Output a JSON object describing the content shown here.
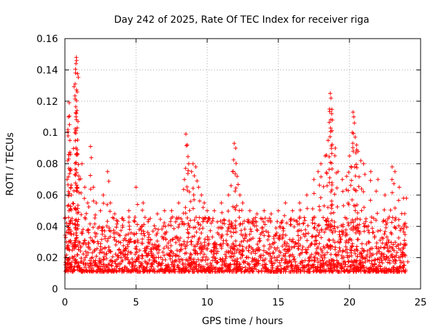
{
  "chart_data": {
    "type": "scatter",
    "title": "Day 242 of 2025, Rate Of TEC Index for receiver riga",
    "xlabel": "GPS time / hours",
    "ylabel": "ROTI / TECUs",
    "xlim": [
      0,
      25
    ],
    "ylim": [
      0,
      0.16
    ],
    "xticks": [
      0,
      5,
      10,
      15,
      20,
      25
    ],
    "xtick_labels": [
      "0",
      "5",
      "10",
      "15",
      "20",
      "25"
    ],
    "yticks": [
      0,
      0.02,
      0.04,
      0.06,
      0.08,
      0.1,
      0.12,
      0.14,
      0.16
    ],
    "ytick_labels": [
      "0",
      "0.02",
      "0.04",
      "0.06",
      "0.08",
      "0.1",
      "0.12",
      "0.14",
      "0.16"
    ],
    "grid": true,
    "marker": "+",
    "marker_color": "#ff0000",
    "series": [
      {
        "name": "ROTI",
        "points": [
          [
            0.05,
            0.02
          ],
          [
            0.1,
            0.03
          ],
          [
            0.15,
            0.07
          ],
          [
            0.2,
            0.082
          ],
          [
            0.25,
            0.11
          ],
          [
            0.3,
            0.119
          ],
          [
            0.32,
            0.105
          ],
          [
            0.35,
            0.095
          ],
          [
            0.4,
            0.086
          ],
          [
            0.45,
            0.06
          ],
          [
            0.5,
            0.045
          ],
          [
            0.6,
            0.035
          ],
          [
            0.7,
            0.1
          ],
          [
            0.72,
            0.131
          ],
          [
            0.75,
            0.138
          ],
          [
            0.78,
            0.144
          ],
          [
            0.8,
            0.148
          ],
          [
            0.82,
            0.146
          ],
          [
            0.85,
            0.114
          ],
          [
            0.9,
            0.086
          ],
          [
            1.0,
            0.07
          ],
          [
            1.2,
            0.08
          ],
          [
            1.4,
            0.065
          ],
          [
            1.6,
            0.055
          ],
          [
            1.8,
            0.091
          ],
          [
            2.0,
            0.065
          ],
          [
            2.2,
            0.055
          ],
          [
            2.5,
            0.05
          ],
          [
            2.7,
            0.06
          ],
          [
            3.0,
            0.075
          ],
          [
            3.2,
            0.055
          ],
          [
            3.5,
            0.048
          ],
          [
            4.0,
            0.045
          ],
          [
            4.5,
            0.05
          ],
          [
            5.0,
            0.065
          ],
          [
            5.5,
            0.055
          ],
          [
            6.0,
            0.045
          ],
          [
            6.5,
            0.048
          ],
          [
            7.0,
            0.05
          ],
          [
            7.5,
            0.05
          ],
          [
            8.0,
            0.055
          ],
          [
            8.4,
            0.07
          ],
          [
            8.5,
            0.099
          ],
          [
            8.6,
            0.092
          ],
          [
            8.7,
            0.08
          ],
          [
            8.9,
            0.075
          ],
          [
            9.0,
            0.08
          ],
          [
            9.2,
            0.078
          ],
          [
            9.4,
            0.065
          ],
          [
            9.6,
            0.06
          ],
          [
            9.8,
            0.055
          ],
          [
            10.0,
            0.05
          ],
          [
            10.5,
            0.05
          ],
          [
            11.0,
            0.055
          ],
          [
            11.5,
            0.06
          ],
          [
            11.8,
            0.075
          ],
          [
            11.9,
            0.093
          ],
          [
            12.0,
            0.09
          ],
          [
            12.1,
            0.072
          ],
          [
            12.3,
            0.06
          ],
          [
            12.5,
            0.055
          ],
          [
            13.0,
            0.05
          ],
          [
            13.5,
            0.048
          ],
          [
            14.0,
            0.05
          ],
          [
            14.5,
            0.048
          ],
          [
            15.0,
            0.05
          ],
          [
            15.5,
            0.055
          ],
          [
            16.0,
            0.05
          ],
          [
            16.5,
            0.055
          ],
          [
            17.0,
            0.06
          ],
          [
            17.5,
            0.07
          ],
          [
            17.8,
            0.075
          ],
          [
            18.0,
            0.08
          ],
          [
            18.3,
            0.085
          ],
          [
            18.5,
            0.095
          ],
          [
            18.6,
            0.115
          ],
          [
            18.65,
            0.125
          ],
          [
            18.7,
            0.122
          ],
          [
            18.75,
            0.112
          ],
          [
            18.8,
            0.108
          ],
          [
            19.0,
            0.09
          ],
          [
            19.2,
            0.075
          ],
          [
            19.5,
            0.07
          ],
          [
            19.8,
            0.072
          ],
          [
            20.0,
            0.085
          ],
          [
            20.2,
            0.1
          ],
          [
            20.25,
            0.113
          ],
          [
            20.3,
            0.11
          ],
          [
            20.4,
            0.097
          ],
          [
            20.5,
            0.092
          ],
          [
            20.6,
            0.088
          ],
          [
            20.8,
            0.082
          ],
          [
            21.0,
            0.08
          ],
          [
            21.5,
            0.075
          ],
          [
            22.0,
            0.07
          ],
          [
            22.5,
            0.06
          ],
          [
            23.0,
            0.078
          ],
          [
            23.2,
            0.075
          ],
          [
            23.5,
            0.065
          ],
          [
            23.8,
            0.058
          ],
          [
            24.0,
            0.058
          ]
        ],
        "band": {
          "description": "dense point cloud: baseline ROTI per 0.05 h bin",
          "x_start": 0.0,
          "x_end": 24.0,
          "x_step": 0.05,
          "y_min": 0.005,
          "y_typical_max": 0.04
        }
      }
    ]
  }
}
